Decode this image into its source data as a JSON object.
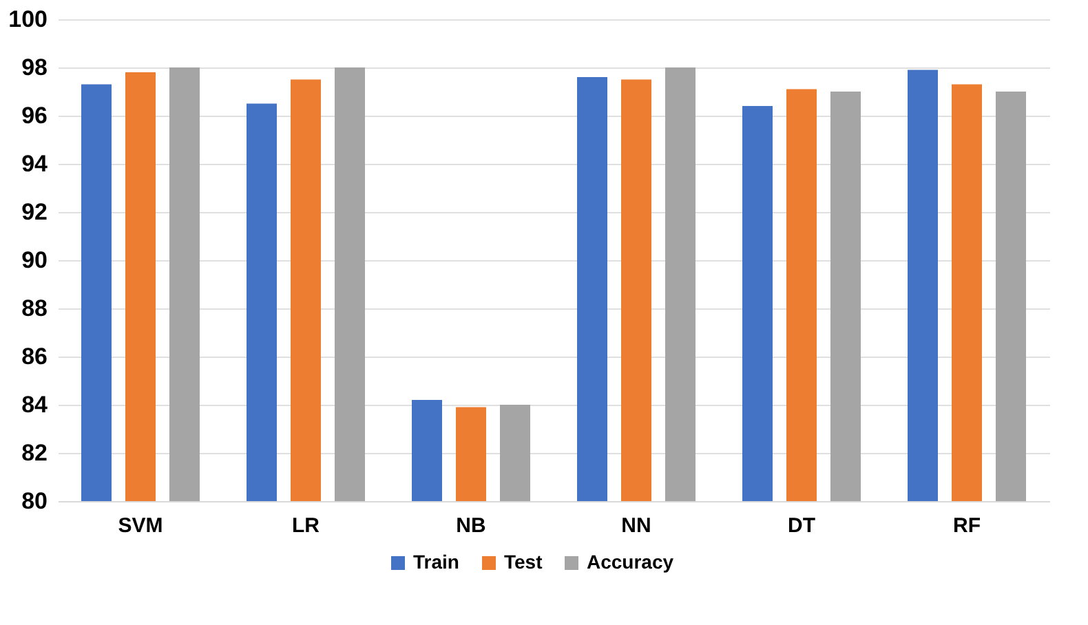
{
  "chart_data": {
    "type": "bar",
    "categories": [
      "SVM",
      "LR",
      "NB",
      "NN",
      "DT",
      "RF"
    ],
    "series": [
      {
        "name": "Train",
        "color": "#4472c4",
        "values": [
          97.3,
          96.5,
          84.2,
          97.6,
          96.4,
          97.9
        ]
      },
      {
        "name": "Test",
        "color": "#ed7d31",
        "values": [
          97.8,
          97.5,
          83.9,
          97.5,
          97.1,
          97.3
        ]
      },
      {
        "name": "Accuracy",
        "color": "#a5a5a5",
        "values": [
          98.0,
          98.0,
          84.0,
          98.0,
          97.0,
          97.0
        ]
      }
    ],
    "ylim": [
      80,
      100
    ],
    "yticks": [
      80,
      82,
      84,
      86,
      88,
      90,
      92,
      94,
      96,
      98,
      100
    ],
    "grid": "y",
    "legend": "bottom"
  }
}
